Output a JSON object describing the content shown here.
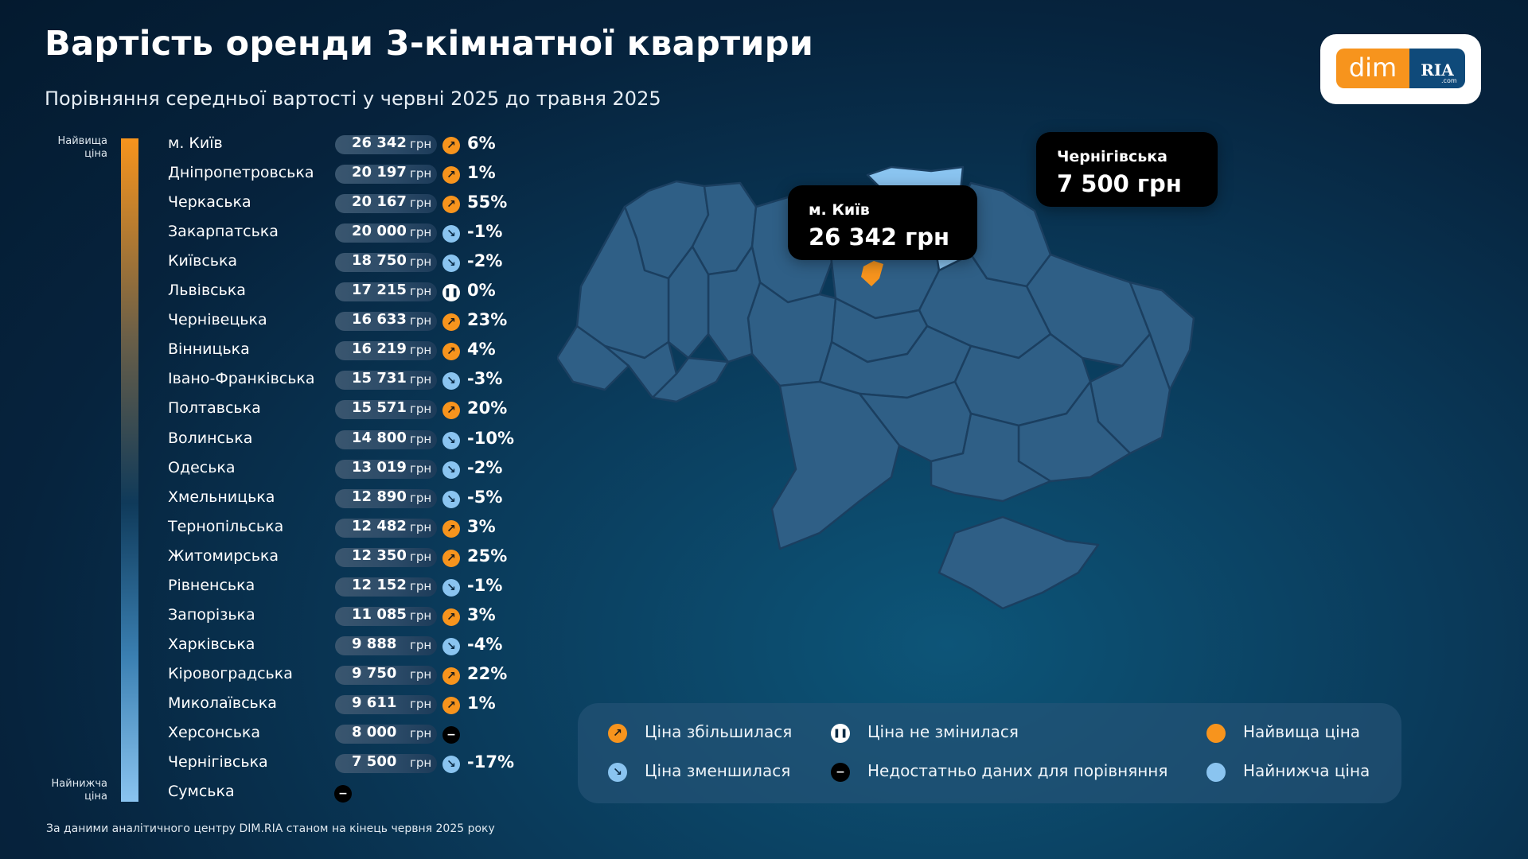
{
  "title": "Вартість оренди 3-кімнатної квартири",
  "subtitle": "Порівняння середньої вартості у червні 2025 до травня 2025",
  "logo": {
    "left": "dim",
    "right": "RIA",
    "suffix": ".com"
  },
  "scale": {
    "top_label_1": "Найвища",
    "top_label_2": "ціна",
    "bottom_label_1": "Найнижча",
    "bottom_label_2": "ціна"
  },
  "currency": "грн",
  "colors": {
    "increase": "#f7941d",
    "decrease": "#8ac4f0",
    "highest": "#f7941d",
    "lowest": "#8ac4f0",
    "region_fill": "#2f5f86"
  },
  "chart_data": {
    "type": "table",
    "columns": [
      "region",
      "price_uah",
      "change_direction",
      "change_percent"
    ],
    "rows": [
      {
        "region": "м. Київ",
        "price": "26 342",
        "value": 26342,
        "dir": "up",
        "pct": "6%"
      },
      {
        "region": "Дніпропетровська",
        "price": "20 197",
        "value": 20197,
        "dir": "up",
        "pct": "1%"
      },
      {
        "region": "Черкаська",
        "price": "20 167",
        "value": 20167,
        "dir": "up",
        "pct": "55%"
      },
      {
        "region": "Закарпатська",
        "price": "20 000",
        "value": 20000,
        "dir": "down",
        "pct": "-1%"
      },
      {
        "region": "Київська",
        "price": "18 750",
        "value": 18750,
        "dir": "down",
        "pct": "-2%"
      },
      {
        "region": "Львівська",
        "price": "17 215",
        "value": 17215,
        "dir": "same",
        "pct": "0%"
      },
      {
        "region": "Чернівецька",
        "price": "16 633",
        "value": 16633,
        "dir": "up",
        "pct": "23%"
      },
      {
        "region": "Вінницька",
        "price": "16 219",
        "value": 16219,
        "dir": "up",
        "pct": "4%"
      },
      {
        "region": "Івано-Франківська",
        "price": "15 731",
        "value": 15731,
        "dir": "down",
        "pct": "-3%"
      },
      {
        "region": "Полтавська",
        "price": "15 571",
        "value": 15571,
        "dir": "up",
        "pct": "20%"
      },
      {
        "region": "Волинська",
        "price": "14 800",
        "value": 14800,
        "dir": "down",
        "pct": "-10%"
      },
      {
        "region": "Одеська",
        "price": "13 019",
        "value": 13019,
        "dir": "down",
        "pct": "-2%"
      },
      {
        "region": "Хмельницька",
        "price": "12 890",
        "value": 12890,
        "dir": "down",
        "pct": "-5%"
      },
      {
        "region": "Тернопільська",
        "price": "12 482",
        "value": 12482,
        "dir": "up",
        "pct": "3%"
      },
      {
        "region": "Житомирська",
        "price": "12 350",
        "value": 12350,
        "dir": "up",
        "pct": "25%"
      },
      {
        "region": "Рівненська",
        "price": "12 152",
        "value": 12152,
        "dir": "down",
        "pct": "-1%"
      },
      {
        "region": "Запорізька",
        "price": "11 085",
        "value": 11085,
        "dir": "up",
        "pct": "3%"
      },
      {
        "region": "Харківська",
        "price": "9 888",
        "value": 9888,
        "dir": "down",
        "pct": "-4%"
      },
      {
        "region": "Кіровоградська",
        "price": "9 750",
        "value": 9750,
        "dir": "up",
        "pct": "22%"
      },
      {
        "region": "Миколаївська",
        "price": "9 611",
        "value": 9611,
        "dir": "up",
        "pct": "1%"
      },
      {
        "region": "Херсонська",
        "price": "8 000",
        "value": 8000,
        "dir": "na",
        "pct": ""
      },
      {
        "region": "Чернігівська",
        "price": "7 500",
        "value": 7500,
        "dir": "down",
        "pct": "-17%"
      },
      {
        "region": "Сумська",
        "price": "",
        "value": null,
        "dir": "na",
        "pct": ""
      }
    ]
  },
  "map": {
    "callout_kyiv": {
      "name": "м. Київ",
      "value": "26 342 грн"
    },
    "callout_chernihiv": {
      "name": "Чернігівська",
      "value": "7 500 грн"
    }
  },
  "legend": {
    "increase": "Ціна збільшилася",
    "decrease": "Ціна зменшилася",
    "same": "Ціна не змінилася",
    "na": "Недостатньо даних для порівняння",
    "highest": "Найвища ціна",
    "lowest": "Найнижча ціна"
  },
  "footnote": "За даними аналітичного центру DIM.RIA станом на кінець червня 2025 року"
}
